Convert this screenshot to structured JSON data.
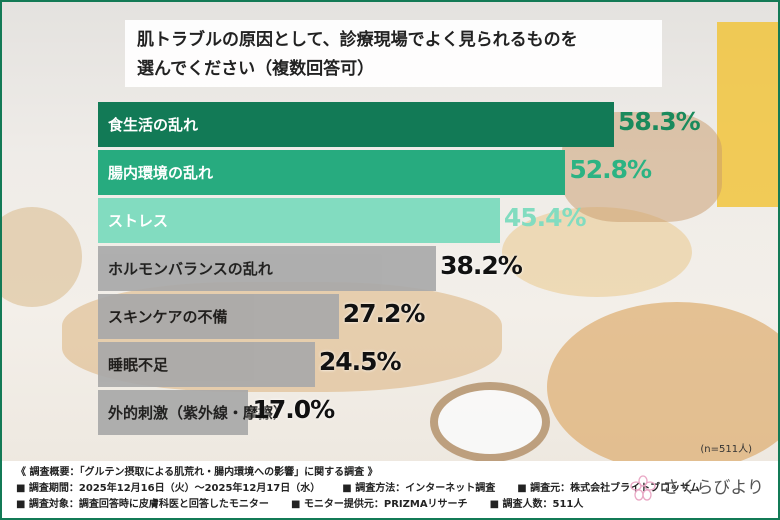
{
  "title_line1": "肌トラブルの原因として、診療現場でよく見られるものを",
  "title_line2": "選んでください（複数回答可）",
  "chart_data": {
    "type": "bar",
    "orientation": "horizontal",
    "categories": [
      "食生活の乱れ",
      "腸内環境の乱れ",
      "ストレス",
      "ホルモンバランスの乱れ",
      "スキンケアの不備",
      "睡眠不足",
      "外的刺激（紫外線・摩擦）"
    ],
    "values": [
      58.3,
      52.8,
      45.4,
      38.2,
      27.2,
      24.5,
      17.0
    ],
    "labels": [
      "58.3%",
      "52.8%",
      "45.4%",
      "38.2%",
      "27.2%",
      "24.5%",
      "17.0%"
    ],
    "bar_colors": [
      "#127a56",
      "#27ab7f",
      "#82dcc0",
      "#a9a9a9",
      "#a9a9a9",
      "#a9a9a9",
      "#a9a9a9"
    ],
    "label_colors": [
      "#1a8a5c",
      "#2cb383",
      "#82dcc0",
      "#111111",
      "#111111",
      "#111111",
      "#111111"
    ],
    "text_colors": [
      "#ffffff",
      "#ffffff",
      "#ffffff",
      "#111111",
      "#111111",
      "#111111",
      "#111111"
    ],
    "note": "(n=511人)"
  },
  "footer": {
    "line1": "《 調査概要：「グルテン摂取による肌荒れ・腸内環境への影響」に関する調査 》",
    "line2": [
      "■ 調査期間：2025年12月16日（火）～2025年12月17日（水）",
      "■ 調査方法：インターネット調査",
      "■ 調査元：株式会社ブライトブロッサム"
    ],
    "line3": [
      "■ 調査対象：調査回答時に皮膚科医と回答したモニター",
      "■ モニター提供元：PRIZMAリサーチ",
      "■ 調査人数：511人"
    ],
    "logo": "さくらびより"
  },
  "accent": "#137a56"
}
